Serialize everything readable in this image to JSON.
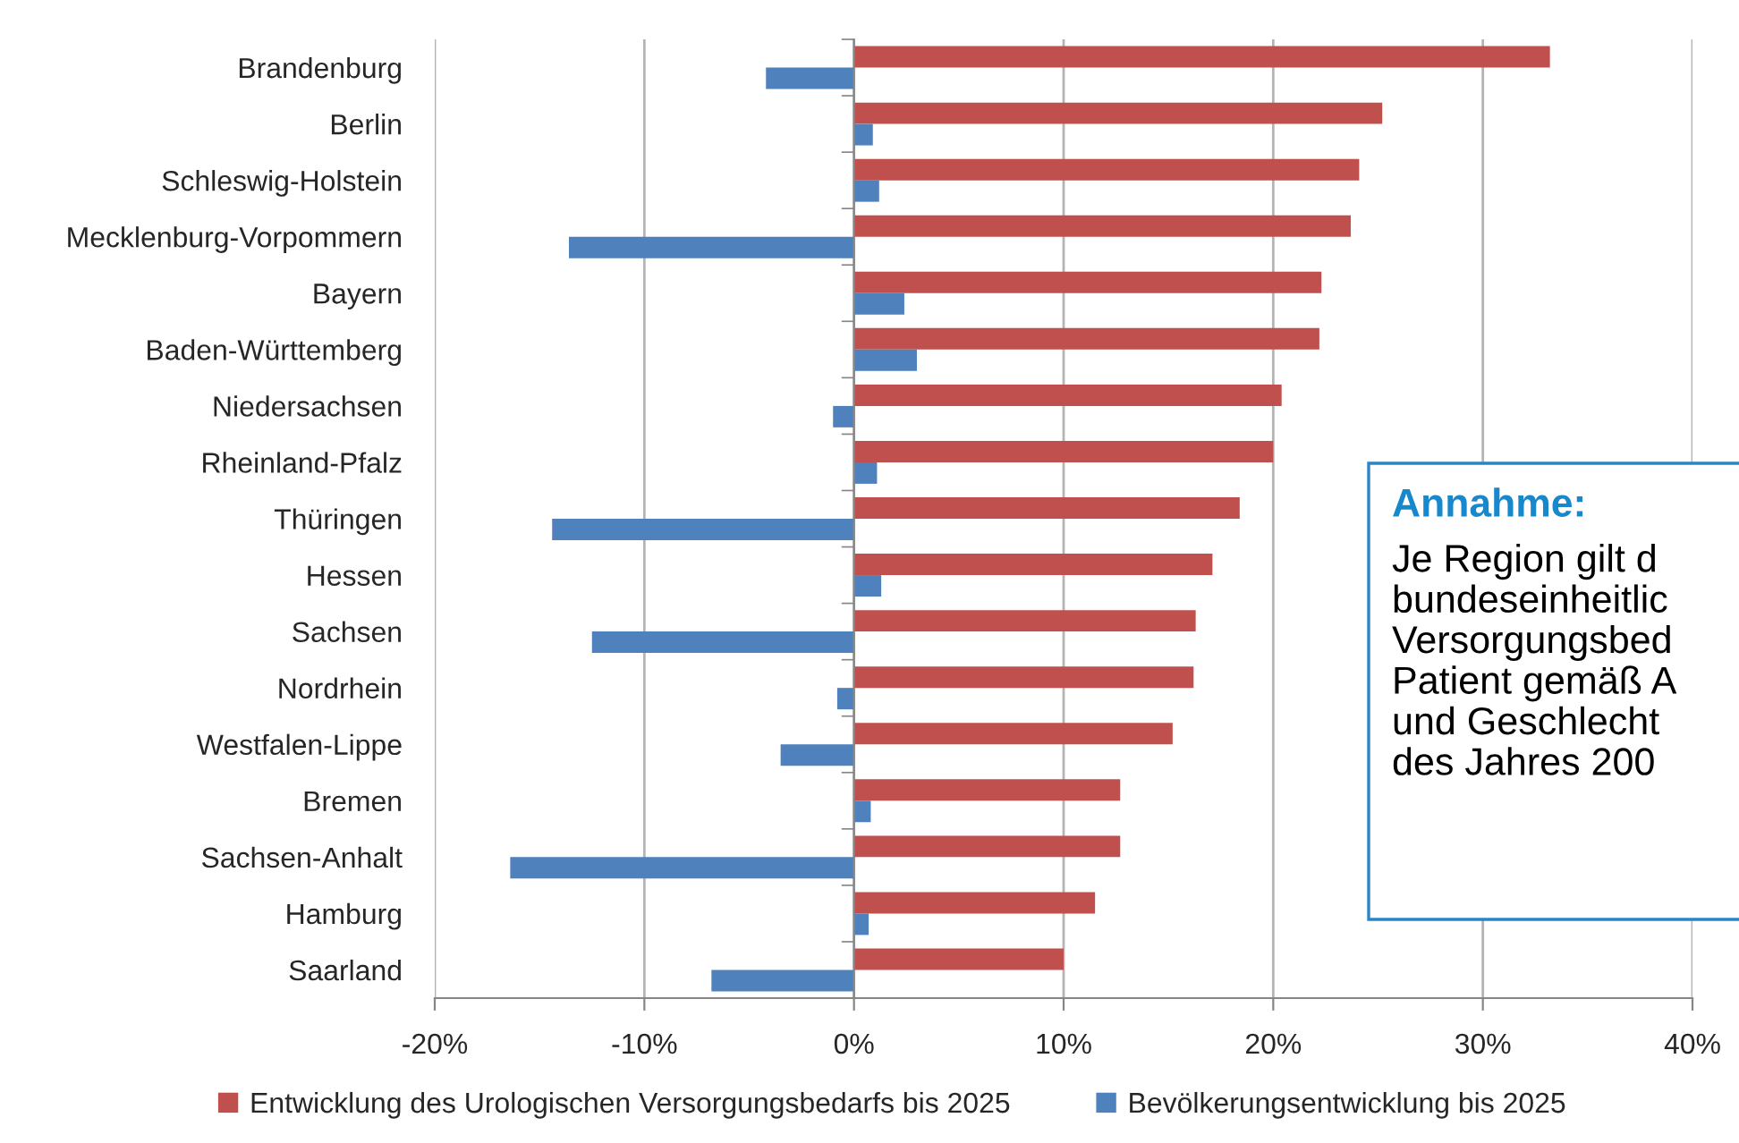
{
  "chart_data": {
    "type": "bar",
    "orientation": "horizontal",
    "categories": [
      "Brandenburg",
      "Berlin",
      "Schleswig-Holstein",
      "Mecklenburg-Vorpommern",
      "Bayern",
      "Baden-Württemberg",
      "Niedersachsen",
      "Rheinland-Pfalz",
      "Thüringen",
      "Hessen",
      "Sachsen",
      "Nordrhein",
      "Westfalen-Lippe",
      "Bremen",
      "Sachsen-Anhalt",
      "Hamburg",
      "Saarland"
    ],
    "series": [
      {
        "name": "Entwicklung des Urologischen Versorgungsbedarfs bis 2025",
        "color": "#c0504d",
        "values": [
          33.2,
          25.2,
          24.1,
          23.7,
          22.3,
          22.2,
          20.4,
          20.0,
          18.4,
          17.1,
          16.3,
          16.2,
          15.2,
          12.7,
          12.7,
          11.5,
          10.0
        ]
      },
      {
        "name": "Bevölkerungsentwicklung bis 2025",
        "color": "#4f81bd",
        "values": [
          -4.2,
          0.9,
          1.2,
          -13.6,
          2.4,
          3.0,
          -1.0,
          1.1,
          -14.4,
          1.3,
          -12.5,
          -0.8,
          -3.5,
          0.8,
          -16.4,
          0.7,
          -6.8
        ]
      }
    ],
    "xlim": [
      -20,
      40
    ],
    "xticks": [
      {
        "value": -20,
        "label": "-20%"
      },
      {
        "value": -10,
        "label": "-10%"
      },
      {
        "value": 0,
        "label": "0%"
      },
      {
        "value": 10,
        "label": "10%"
      },
      {
        "value": 20,
        "label": "20%"
      },
      {
        "value": 30,
        "label": "30%"
      },
      {
        "value": 40,
        "label": "40%"
      }
    ],
    "grid": "x",
    "legend": "bottom",
    "annotations": [
      "Annahme:",
      "Je Region gilt d\nbundeseinheitlic\nVersorgungsbed\nPatient gemäß A\nund Geschlecht\ndes Jahres 200"
    ]
  }
}
